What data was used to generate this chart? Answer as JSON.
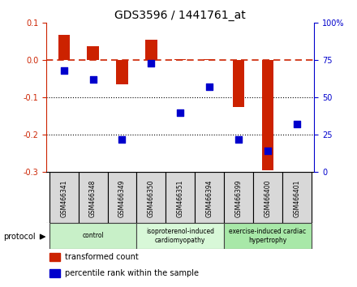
{
  "title": "GDS3596 / 1441761_at",
  "samples": [
    "GSM466341",
    "GSM466348",
    "GSM466349",
    "GSM466350",
    "GSM466351",
    "GSM466394",
    "GSM466399",
    "GSM466400",
    "GSM466401"
  ],
  "transformed_count": [
    0.068,
    0.038,
    -0.065,
    0.055,
    0.002,
    0.003,
    -0.125,
    -0.295,
    0.001
  ],
  "percentile_rank": [
    68,
    62,
    22,
    73,
    40,
    57,
    22,
    14,
    32
  ],
  "ylim_left": [
    -0.3,
    0.1
  ],
  "ylim_right": [
    0,
    100
  ],
  "yticks_left": [
    0.1,
    0.0,
    -0.1,
    -0.2,
    -0.3
  ],
  "yticks_right": [
    100,
    75,
    50,
    25,
    0
  ],
  "groups": [
    {
      "label": "control",
      "start": 0,
      "end": 3,
      "color": "#c8f0c8"
    },
    {
      "label": "isoproterenol-induced\ncardiomyopathy",
      "start": 3,
      "end": 6,
      "color": "#d8f8d8"
    },
    {
      "label": "exercise-induced cardiac\nhypertrophy",
      "start": 6,
      "end": 9,
      "color": "#a8e8a8"
    }
  ],
  "bar_color": "#cc2200",
  "dot_color": "#0000cc",
  "zeroline_color": "#cc2200",
  "dotted_line_color": "#000000",
  "bg_color": "#ffffff",
  "protocol_label": "protocol",
  "legend_items": [
    {
      "label": "transformed count",
      "color": "#cc2200"
    },
    {
      "label": "percentile rank within the sample",
      "color": "#0000cc"
    }
  ]
}
